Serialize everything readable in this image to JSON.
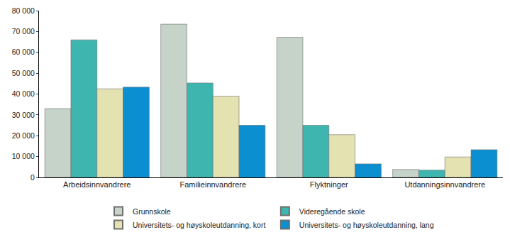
{
  "chart_data": {
    "type": "bar",
    "categories": [
      "Arbeidsinnvandrere",
      "Familieinnvandrere",
      "Flyktninger",
      "Utdanningsinnvandrere"
    ],
    "series": [
      {
        "name": "Grunnskole",
        "color": "#c5d3c8",
        "values": [
          33000,
          73500,
          67200,
          3800
        ]
      },
      {
        "name": "Videregående skole",
        "color": "#3eb5ae",
        "values": [
          66000,
          45300,
          25000,
          3500
        ]
      },
      {
        "name": "Universitets- og høyskoleutdanning, kort",
        "color": "#e5e2b2",
        "values": [
          42500,
          39000,
          20500,
          9800
        ]
      },
      {
        "name": "Universitets- og høyskoleutdanning, lang",
        "color": "#0b8fd0",
        "values": [
          43300,
          25000,
          6500,
          13300
        ]
      }
    ],
    "ylim": [
      0,
      80000
    ],
    "yticks": [
      0,
      {
        "value": 10000,
        "label": "10 000"
      },
      {
        "value": 20000,
        "label": "20 000"
      },
      {
        "value": 30000,
        "label": "30 000"
      },
      {
        "value": 40000,
        "label": "40 000"
      },
      {
        "value": 50000,
        "label": "50 000"
      },
      {
        "value": 60000,
        "label": "60 000"
      },
      {
        "value": 70000,
        "label": "70 000"
      },
      {
        "value": 80000,
        "label": "80 000"
      }
    ],
    "grid": false,
    "legend": "bottom"
  }
}
